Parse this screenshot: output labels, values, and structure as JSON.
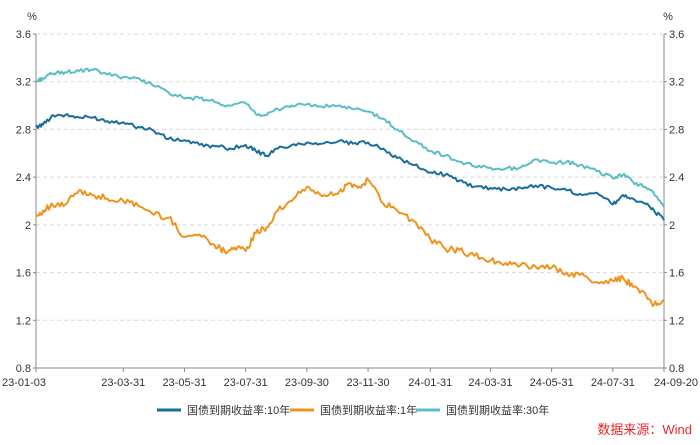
{
  "chart_data": {
    "type": "line",
    "y_unit": "%",
    "ylim": [
      0.8,
      3.6
    ],
    "yticks": [
      0.8,
      1.2,
      1.6,
      2.0,
      2.4,
      2.8,
      3.2,
      3.6
    ],
    "ytick_labels": [
      "0.8",
      "1.2",
      "1.6",
      "2",
      "2.4",
      "2.8",
      "3.2",
      "3.6"
    ],
    "xlim": [
      "2023-01-03",
      "2024-09-20"
    ],
    "xticks": [
      "2023-01-03",
      "2023-03-31",
      "2023-05-31",
      "2023-07-31",
      "2023-09-30",
      "2023-11-30",
      "2024-01-31",
      "2024-03-31",
      "2024-05-31",
      "2024-07-31",
      "2024-09-20"
    ],
    "xtick_labels": [
      "23-01-03",
      "23-03-31",
      "23-05-31",
      "23-07-31",
      "23-09-30",
      "23-11-30",
      "24-01-31",
      "24-03-31",
      "24-05-31",
      "24-07-31",
      "24-09-20"
    ],
    "grid": "horizontal-dashed",
    "legend_position": "bottom",
    "series": [
      {
        "name": "国债到期收益率:10年",
        "color": "#1a6e99",
        "x": [
          "2023-01-03",
          "2023-01-10",
          "2023-01-20",
          "2023-02-01",
          "2023-02-15",
          "2023-03-01",
          "2023-03-15",
          "2023-03-31",
          "2023-04-15",
          "2023-04-28",
          "2023-05-15",
          "2023-05-31",
          "2023-06-15",
          "2023-06-30",
          "2023-07-15",
          "2023-07-31",
          "2023-08-10",
          "2023-08-21",
          "2023-09-01",
          "2023-09-15",
          "2023-09-30",
          "2023-10-15",
          "2023-10-31",
          "2023-11-15",
          "2023-11-30",
          "2023-12-15",
          "2023-12-29",
          "2024-01-15",
          "2024-01-31",
          "2024-02-15",
          "2024-02-29",
          "2024-03-15",
          "2024-03-31",
          "2024-04-15",
          "2024-04-30",
          "2024-05-15",
          "2024-05-31",
          "2024-06-15",
          "2024-06-28",
          "2024-07-15",
          "2024-07-31",
          "2024-08-10",
          "2024-08-20",
          "2024-09-01",
          "2024-09-10",
          "2024-09-20"
        ],
        "values": [
          2.82,
          2.84,
          2.92,
          2.92,
          2.9,
          2.9,
          2.87,
          2.86,
          2.82,
          2.8,
          2.72,
          2.71,
          2.67,
          2.66,
          2.64,
          2.67,
          2.62,
          2.58,
          2.64,
          2.67,
          2.69,
          2.68,
          2.7,
          2.68,
          2.69,
          2.64,
          2.56,
          2.5,
          2.44,
          2.42,
          2.37,
          2.32,
          2.31,
          2.3,
          2.31,
          2.33,
          2.31,
          2.29,
          2.26,
          2.27,
          2.17,
          2.25,
          2.22,
          2.18,
          2.12,
          2.04
        ]
      },
      {
        "name": "国债到期收益率:1年",
        "color": "#f0931e",
        "x": [
          "2023-01-03",
          "2023-01-10",
          "2023-01-20",
          "2023-02-01",
          "2023-02-15",
          "2023-02-28",
          "2023-03-15",
          "2023-03-31",
          "2023-04-15",
          "2023-04-28",
          "2023-05-15",
          "2023-05-31",
          "2023-06-15",
          "2023-06-30",
          "2023-07-10",
          "2023-07-20",
          "2023-07-31",
          "2023-08-10",
          "2023-08-21",
          "2023-09-01",
          "2023-09-15",
          "2023-09-30",
          "2023-10-15",
          "2023-10-31",
          "2023-11-10",
          "2023-11-20",
          "2023-11-30",
          "2023-12-15",
          "2023-12-29",
          "2024-01-15",
          "2024-01-31",
          "2024-02-15",
          "2024-02-29",
          "2024-03-15",
          "2024-03-31",
          "2024-04-15",
          "2024-04-30",
          "2024-05-15",
          "2024-05-31",
          "2024-06-15",
          "2024-06-28",
          "2024-07-15",
          "2024-07-31",
          "2024-08-10",
          "2024-08-20",
          "2024-09-01",
          "2024-09-10",
          "2024-09-20"
        ],
        "values": [
          2.07,
          2.12,
          2.16,
          2.17,
          2.29,
          2.25,
          2.22,
          2.2,
          2.16,
          2.1,
          2.06,
          1.9,
          1.92,
          1.83,
          1.78,
          1.81,
          1.78,
          1.93,
          1.98,
          2.12,
          2.2,
          2.32,
          2.24,
          2.26,
          2.35,
          2.31,
          2.38,
          2.18,
          2.12,
          2.03,
          1.88,
          1.8,
          1.79,
          1.74,
          1.7,
          1.68,
          1.66,
          1.65,
          1.64,
          1.6,
          1.58,
          1.52,
          1.53,
          1.56,
          1.48,
          1.43,
          1.33,
          1.37
        ]
      },
      {
        "name": "国债到期收益率:30年",
        "color": "#5bbdc5",
        "x": [
          "2023-01-03",
          "2023-01-10",
          "2023-01-20",
          "2023-02-01",
          "2023-02-15",
          "2023-03-01",
          "2023-03-15",
          "2023-03-31",
          "2023-04-15",
          "2023-04-28",
          "2023-05-15",
          "2023-05-31",
          "2023-06-15",
          "2023-06-30",
          "2023-07-15",
          "2023-07-31",
          "2023-08-10",
          "2023-08-21",
          "2023-09-01",
          "2023-09-15",
          "2023-09-30",
          "2023-10-15",
          "2023-10-31",
          "2023-11-15",
          "2023-11-30",
          "2023-12-15",
          "2023-12-29",
          "2024-01-15",
          "2024-01-31",
          "2024-02-15",
          "2024-02-29",
          "2024-03-15",
          "2024-03-31",
          "2024-04-15",
          "2024-04-30",
          "2024-05-15",
          "2024-05-31",
          "2024-06-15",
          "2024-06-28",
          "2024-07-15",
          "2024-07-31",
          "2024-08-10",
          "2024-08-20",
          "2024-09-01",
          "2024-09-10",
          "2024-09-20"
        ],
        "values": [
          3.2,
          3.23,
          3.27,
          3.28,
          3.29,
          3.3,
          3.26,
          3.24,
          3.23,
          3.18,
          3.11,
          3.06,
          3.06,
          3.03,
          3.0,
          3.02,
          2.93,
          2.92,
          2.97,
          3.0,
          3.01,
          2.99,
          3.0,
          2.97,
          2.95,
          2.89,
          2.8,
          2.7,
          2.62,
          2.58,
          2.53,
          2.49,
          2.48,
          2.47,
          2.48,
          2.55,
          2.52,
          2.53,
          2.5,
          2.45,
          2.39,
          2.42,
          2.36,
          2.32,
          2.26,
          2.15
        ]
      }
    ]
  },
  "source_label": "数据来源：Wind"
}
